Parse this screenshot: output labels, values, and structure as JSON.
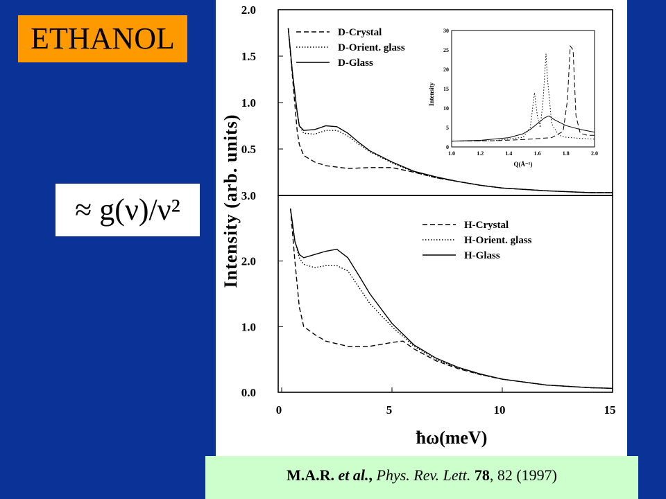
{
  "title": "ETHANOL",
  "formula": "≈ g(ν)/ν²",
  "citation": {
    "authors": "M.A.R.",
    "etal": "et al.",
    "comma": ",",
    "journal": "Phys. Rev. Lett.",
    "volume": "78",
    "pages_year": ", 82 (1997)"
  },
  "colors": {
    "background": "#0b3296",
    "title_badge": "#ff9900",
    "citation_box": "#ccffcc"
  },
  "chart_data": [
    {
      "type": "line",
      "ylabel": "Intensity (arb. units)",
      "xlabel": "ħω(meV)",
      "xlim": [
        0,
        15
      ],
      "ylim": [
        0,
        2
      ],
      "yticks": [
        "0.5",
        "1.0",
        "1.5",
        "2.0"
      ],
      "legend": "top-center",
      "series": [
        {
          "name": "D-Crystal",
          "style": "dashed",
          "x": [
            0.3,
            0.5,
            0.7,
            0.8,
            1,
            1.5,
            2,
            3,
            4,
            5,
            6,
            7,
            8,
            9,
            10,
            12,
            14,
            15
          ],
          "y": [
            1.8,
            1.25,
            0.7,
            0.55,
            0.43,
            0.36,
            0.32,
            0.29,
            0.3,
            0.3,
            0.25,
            0.19,
            0.15,
            0.11,
            0.08,
            0.05,
            0.03,
            0.03
          ]
        },
        {
          "name": "D-Orient. glass",
          "style": "dotted",
          "x": [
            0.3,
            0.5,
            0.7,
            0.8,
            1,
            1.5,
            2,
            2.5,
            3,
            3.5,
            4,
            5,
            6,
            7,
            8,
            9,
            10,
            12,
            14,
            15
          ],
          "y": [
            1.8,
            1.3,
            0.9,
            0.75,
            0.67,
            0.66,
            0.7,
            0.7,
            0.64,
            0.55,
            0.47,
            0.35,
            0.25,
            0.19,
            0.15,
            0.11,
            0.08,
            0.05,
            0.03,
            0.03
          ]
        },
        {
          "name": "D-Glass",
          "style": "solid",
          "x": [
            0.3,
            0.5,
            0.7,
            0.8,
            1,
            1.5,
            2,
            2.5,
            3,
            3.5,
            4,
            5,
            6,
            7,
            8,
            9,
            10,
            12,
            14,
            15
          ],
          "y": [
            1.8,
            1.3,
            0.9,
            0.75,
            0.7,
            0.71,
            0.75,
            0.74,
            0.67,
            0.57,
            0.48,
            0.36,
            0.26,
            0.2,
            0.15,
            0.11,
            0.08,
            0.05,
            0.03,
            0.03
          ]
        }
      ]
    },
    {
      "type": "line",
      "ylabel": "Intensity (arb. units)",
      "xlabel": "ħω(meV)",
      "xlim": [
        0,
        15
      ],
      "ylim": [
        0,
        3
      ],
      "xticks": [
        "0",
        "5",
        "10",
        "15"
      ],
      "yticks": [
        "0.0",
        "1.0",
        "2.0",
        "3.0"
      ],
      "legend": "top-right",
      "series": [
        {
          "name": "H-Crystal",
          "style": "dashed",
          "x": [
            0.4,
            0.6,
            0.8,
            1,
            1.5,
            2,
            3,
            4,
            5,
            5.5,
            6,
            7,
            8,
            9,
            10,
            12,
            14,
            15
          ],
          "y": [
            2.8,
            2.0,
            1.3,
            1.0,
            0.88,
            0.78,
            0.7,
            0.7,
            0.76,
            0.78,
            0.66,
            0.48,
            0.36,
            0.27,
            0.2,
            0.11,
            0.07,
            0.06
          ]
        },
        {
          "name": "H-Orient. glass",
          "style": "dotted",
          "x": [
            0.4,
            0.6,
            0.8,
            1,
            1.5,
            2,
            2.5,
            3,
            3.5,
            4,
            5,
            6,
            7,
            8,
            9,
            10,
            12,
            14,
            15
          ],
          "y": [
            2.8,
            2.3,
            2.05,
            1.95,
            1.9,
            1.93,
            1.93,
            1.85,
            1.6,
            1.35,
            1.0,
            0.7,
            0.5,
            0.37,
            0.27,
            0.2,
            0.11,
            0.07,
            0.06
          ]
        },
        {
          "name": "H-Glass",
          "style": "solid",
          "x": [
            0.4,
            0.6,
            0.8,
            1,
            1.5,
            2,
            2.5,
            3,
            3.5,
            4,
            5,
            6,
            7,
            8,
            9,
            10,
            12,
            14,
            15
          ],
          "y": [
            2.8,
            2.3,
            2.1,
            2.05,
            2.1,
            2.15,
            2.18,
            2.05,
            1.78,
            1.5,
            1.05,
            0.72,
            0.52,
            0.38,
            0.28,
            0.2,
            0.11,
            0.07,
            0.06
          ]
        }
      ]
    },
    {
      "type": "line",
      "ylabel": "Intensity",
      "xlabel": "Q(Å⁻¹)",
      "xlim": [
        1.0,
        2.0
      ],
      "ylim": [
        0,
        30
      ],
      "xticks": [
        "1.0",
        "1.2",
        "1.4",
        "1.6",
        "1.8",
        "2.0"
      ],
      "yticks": [
        "0",
        "5",
        "10",
        "15",
        "20",
        "25",
        "30"
      ],
      "series": [
        {
          "style": "dashed",
          "x": [
            1.0,
            1.3,
            1.5,
            1.7,
            1.78,
            1.81,
            1.83,
            1.85,
            1.87,
            1.9,
            1.95,
            2.0
          ],
          "y": [
            1.5,
            1.6,
            1.9,
            2.4,
            4,
            12,
            26,
            25,
            8,
            3.5,
            3,
            3
          ]
        },
        {
          "style": "dotted",
          "x": [
            1.0,
            1.3,
            1.5,
            1.55,
            1.58,
            1.6,
            1.62,
            1.64,
            1.66,
            1.67,
            1.7,
            1.75,
            1.8,
            1.9,
            2.0
          ],
          "y": [
            1.5,
            1.6,
            2.5,
            5,
            14,
            8,
            5,
            12,
            24,
            18,
            6,
            3,
            2.5,
            2.2,
            2
          ]
        },
        {
          "style": "solid",
          "x": [
            1.0,
            1.2,
            1.4,
            1.5,
            1.55,
            1.6,
            1.65,
            1.68,
            1.72,
            1.8,
            1.9,
            2.0
          ],
          "y": [
            1.5,
            1.7,
            2.4,
            3.4,
            4.5,
            6,
            7.5,
            8,
            7,
            5.5,
            4.5,
            3.8
          ]
        }
      ]
    }
  ]
}
